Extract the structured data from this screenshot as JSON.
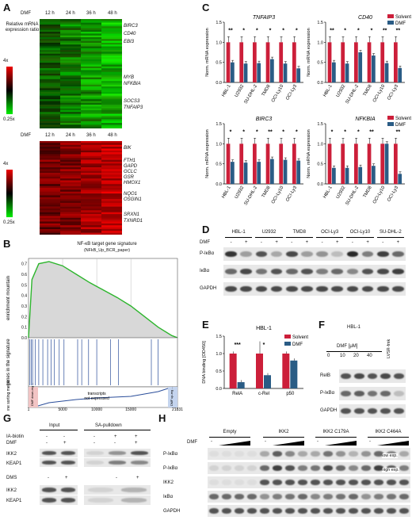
{
  "panels": {
    "A": "A",
    "B": "B",
    "C": "C",
    "D": "D",
    "E": "E",
    "F": "F",
    "G": "G",
    "H": "H"
  },
  "panelA": {
    "dmf_label": "DMF",
    "time_labels": [
      "12 h",
      "24 h",
      "36 h",
      "48 h"
    ],
    "ratio_label": "Relative mRNA expression ratio",
    "scale_max": "4x",
    "scale_min": "0.25x",
    "heatmap_top": {
      "genes": [
        "BIRC3",
        "CD40",
        "EBI3",
        "MYB",
        "NFKBIA",
        "SOCS3",
        "TNFAIP3"
      ],
      "colors": {
        "low": "#00ee00",
        "mid": "#000000",
        "high": "#ee0000"
      }
    },
    "heatmap_bottom": {
      "genes": [
        "BIK",
        "FTH1",
        "GAPD",
        "GCLC",
        "GSR",
        "HMOX1",
        "NQO1",
        "OSGIN1",
        "SRXN1",
        "TXNRD1"
      ]
    }
  },
  "panelB": {
    "title": "NF-κB target gene signature",
    "subtitle": "(NFkB_Up_BCR_paper)",
    "y_top": "enrichment mountain",
    "y_mid": "genes in the signature",
    "y_bot": "gene sorting metric",
    "left_box": "DMF down-reg ...",
    "right_box": "DMF up-reg ...",
    "annotation": "transcripts not expressed",
    "x_ticks": [
      "5000",
      "10000",
      "15000",
      "21831"
    ],
    "x_start": "1",
    "chart_data": {
      "type": "line",
      "x": [
        1,
        500,
        1500,
        3000,
        5000,
        7000,
        9000,
        11000,
        13000,
        15000,
        17000,
        19000,
        21000,
        21831
      ],
      "y": [
        0,
        0.55,
        0.7,
        0.72,
        0.68,
        0.6,
        0.52,
        0.45,
        0.38,
        0.3,
        0.2,
        0.1,
        0.02,
        0
      ],
      "y_ticks": [
        "0.7",
        "0.6",
        "0.5",
        "0.4",
        "0.3",
        "0.2",
        "0.1",
        "0.0"
      ],
      "ylim": [
        0,
        0.75
      ],
      "xlim": [
        1,
        21831
      ]
    }
  },
  "panelC": {
    "ylabel": "Norm. mRNA expression",
    "legend": [
      "Solvent",
      "DMF"
    ],
    "colors": {
      "Solvent": "#cc1f3a",
      "DMF": "#2a5c85"
    },
    "cell_lines": [
      "HBL-1",
      "U2932",
      "SU-DHL-2",
      "TMD8",
      "OCI-Ly10",
      "OCI-Ly3"
    ],
    "y_ticks": [
      "0.0",
      "0.5",
      "1.0",
      "1.5"
    ],
    "chart_data": [
      {
        "type": "bar",
        "title": "TNFAIP3",
        "categories": [
          "HBL-1",
          "U2932",
          "SU-DHL-2",
          "TMD8",
          "OCI-Ly10",
          "OCI-Ly3"
        ],
        "series": [
          {
            "name": "Solvent",
            "values": [
              1,
              1,
              1,
              1,
              1,
              1
            ]
          },
          {
            "name": "DMF",
            "values": [
              0.5,
              0.47,
              0.48,
              0.58,
              0.47,
              0.35
            ]
          }
        ],
        "sig": [
          "**",
          "*",
          "*",
          "*",
          "*",
          "*"
        ],
        "ylim": [
          0,
          1.5
        ]
      },
      {
        "type": "bar",
        "title": "CD40",
        "categories": [
          "HBL-1",
          "U2932",
          "SU-DHL-2",
          "TMD8",
          "OCI-Ly10",
          "OCI-Ly3"
        ],
        "series": [
          {
            "name": "Solvent",
            "values": [
              1,
              1,
              1,
              1,
              1,
              1
            ]
          },
          {
            "name": "DMF",
            "values": [
              0.5,
              0.47,
              0.75,
              0.67,
              0.48,
              0.36
            ]
          }
        ],
        "sig": [
          "**",
          "*",
          "*",
          "*",
          "**",
          "**"
        ],
        "ylim": [
          0,
          1.5
        ]
      },
      {
        "type": "bar",
        "title": "BIRC3",
        "categories": [
          "HBL-1",
          "U2932",
          "SU-DHL-2",
          "TMD8",
          "OCI-Ly10",
          "OCI-Ly3"
        ],
        "series": [
          {
            "name": "Solvent",
            "values": [
              1,
              1,
              1,
              1,
              1,
              1
            ]
          },
          {
            "name": "DMF",
            "values": [
              0.55,
              0.53,
              0.55,
              0.62,
              0.6,
              0.58
            ]
          }
        ],
        "sig": [
          "*",
          "*",
          "*",
          "**",
          "*",
          "*"
        ],
        "ylim": [
          0,
          1.5
        ]
      },
      {
        "type": "bar",
        "title": "NFKBIA",
        "categories": [
          "HBL-1",
          "U2932",
          "SU-DHL-2",
          "TMD8",
          "OCI-Ly10",
          "OCI-Ly3"
        ],
        "series": [
          {
            "name": "Solvent",
            "values": [
              1,
              1,
              1,
              1,
              1,
              1
            ]
          },
          {
            "name": "DMF",
            "values": [
              0.4,
              0.4,
              0.42,
              0.45,
              1.0,
              0.25
            ]
          }
        ],
        "sig": [
          "*",
          "*",
          "*",
          "**",
          "",
          "**"
        ],
        "ylim": [
          0,
          1.5
        ]
      }
    ]
  },
  "panelD": {
    "cell_lines": [
      "HBL-1",
      "U2932",
      "TMD8",
      "OCI-Ly3",
      "OCI-Ly10",
      "SU-DHL-2"
    ],
    "dmf_label": "DMF",
    "signs": [
      "-",
      "+",
      "-",
      "+",
      "-",
      "+",
      "-",
      "+",
      "-",
      "+",
      "-",
      "+"
    ],
    "rows": [
      "P-IκBα",
      "IκBα",
      "GAPDH"
    ]
  },
  "panelE": {
    "title": "HBL-1",
    "ylabel": "DNA binding [OD450]",
    "legend": [
      "Solvent",
      "DMF"
    ],
    "y_ticks": [
      "0.0",
      "0.5",
      "1.0",
      "1.5"
    ],
    "chart_data": {
      "type": "bar",
      "categories": [
        "RelA",
        "c-Rel",
        "p50"
      ],
      "series": [
        {
          "name": "Solvent",
          "values": [
            1.0,
            1.0,
            1.0
          ]
        },
        {
          "name": "DMF",
          "values": [
            0.18,
            0.38,
            0.8
          ]
        }
      ],
      "sig": [
        "***",
        "*",
        ""
      ],
      "ylim": [
        0,
        1.5
      ]
    }
  },
  "panelF": {
    "title": "HBL-1",
    "dmf_label": "DMF [μM]",
    "doses": [
      "0",
      "10",
      "20",
      "40"
    ],
    "extra_lane": "LVSR-fmk",
    "rows": [
      "RelB",
      "P-IκBα",
      "GAPDH"
    ]
  },
  "panelG": {
    "headers": [
      "Input",
      "SA-pulldown"
    ],
    "row_labels_top": [
      "IA-biotin",
      "DMF"
    ],
    "signs_ia": [
      "-",
      "-",
      "-",
      "+",
      "+"
    ],
    "signs_dmf": [
      "-",
      "+",
      "-",
      "-",
      "+"
    ],
    "blots_top": [
      "IKK2",
      "KEAP1"
    ],
    "dms_label": "DMS",
    "dms_signs": [
      "-",
      "+",
      "-",
      "+"
    ],
    "blots_bottom": [
      "IKK2",
      "KEAP1"
    ]
  },
  "panelH": {
    "groups": [
      "Empty",
      "IKK2",
      "IKK2 C179A",
      "IKK2 C464A"
    ],
    "dmf_label": "DMF",
    "rows": [
      "P-IκBα",
      "P-IκBα",
      "IKK2",
      "IκBα",
      "GAPDH"
    ],
    "exposures": [
      "low exp.",
      "high exp."
    ]
  }
}
